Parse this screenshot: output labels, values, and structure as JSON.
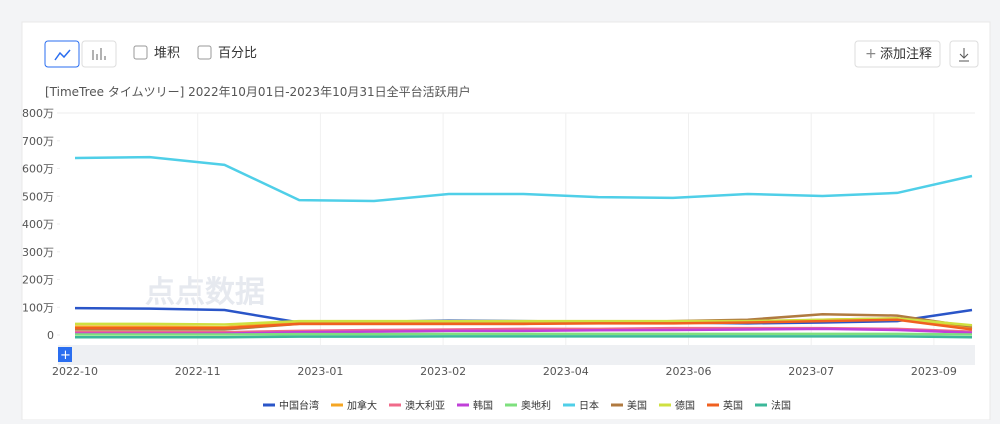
{
  "toolbar": {
    "stack_label": "堆积",
    "percent_label": "百分比",
    "annotate_label": "添加注释"
  },
  "watermark": "点点数据",
  "chart_data": {
    "type": "line",
    "title": "[TimeTree タイムツリー]  2022年10月01日-2023年10月31日全平台活跃用户",
    "x_tick_labels": [
      "2022-10",
      "2022-11",
      "2023-01",
      "2023-02",
      "2023-04",
      "2023-06",
      "2023-07",
      "2023-09"
    ],
    "ylim": [
      -36,
      800
    ],
    "yticks": [
      0,
      {
        "value": 100,
        "label": "100万"
      },
      {
        "value": 200,
        "label": "200万"
      },
      {
        "value": 300,
        "label": "300万"
      },
      {
        "value": 400,
        "label": "400万"
      },
      {
        "value": 500,
        "label": "500万"
      },
      {
        "value": 600,
        "label": "600万"
      },
      {
        "value": 700,
        "label": "700万"
      },
      {
        "value": 800,
        "label": "800万"
      }
    ],
    "series": [
      {
        "name": "中国台湾",
        "color": "#2a55c8",
        "values": [
          97,
          95,
          90,
          45,
          48,
          52,
          50,
          48,
          45,
          42,
          45,
          50,
          90
        ]
      },
      {
        "name": "加拿大",
        "color": "#f5a623",
        "values": [
          30,
          30,
          28,
          45,
          45,
          45,
          45,
          45,
          45,
          47,
          55,
          60,
          25
        ]
      },
      {
        "name": "澳大利亚",
        "color": "#f06a8a",
        "values": [
          10,
          10,
          10,
          15,
          18,
          20,
          22,
          22,
          25,
          25,
          25,
          22,
          12
        ]
      },
      {
        "name": "韩国",
        "color": "#c040d8",
        "values": [
          5,
          5,
          5,
          10,
          12,
          15,
          15,
          17,
          18,
          20,
          22,
          18,
          8
        ]
      },
      {
        "name": "奥地利",
        "color": "#7ee07e",
        "values": [
          2,
          2,
          2,
          3,
          3,
          4,
          4,
          4,
          4,
          4,
          4,
          4,
          2
        ]
      },
      {
        "name": "日本",
        "color": "#4fcfe8",
        "values": [
          638,
          641,
          613,
          486,
          483,
          508,
          508,
          497,
          494,
          508,
          501,
          512,
          573
        ]
      },
      {
        "name": "美国",
        "color": "#b07a40",
        "values": [
          20,
          20,
          20,
          40,
          40,
          40,
          40,
          45,
          50,
          55,
          75,
          70,
          30
        ]
      },
      {
        "name": "德国",
        "color": "#cfe040",
        "values": [
          40,
          40,
          38,
          50,
          50,
          50,
          50,
          50,
          50,
          50,
          55,
          60,
          35
        ]
      },
      {
        "name": "英国",
        "color": "#f06020",
        "values": [
          25,
          25,
          25,
          40,
          40,
          40,
          40,
          42,
          42,
          45,
          50,
          55,
          20
        ]
      },
      {
        "name": "法国",
        "color": "#3cb89a",
        "values": [
          -8,
          -8,
          -8,
          -6,
          -6,
          -5,
          -5,
          -5,
          -5,
          -5,
          -5,
          -5,
          -8
        ]
      }
    ]
  }
}
